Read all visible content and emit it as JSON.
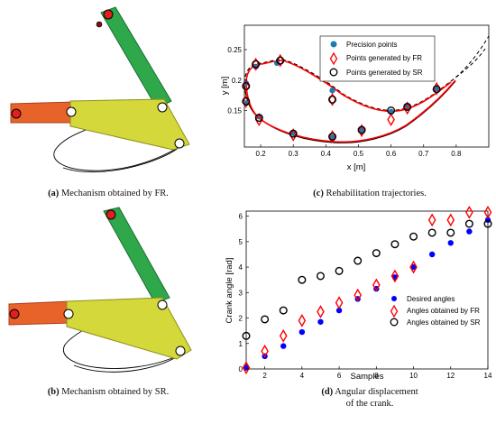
{
  "captions": {
    "a_tag": "(a)",
    "a_text": "Mechanism obtained by FR.",
    "b_tag": "(b)",
    "b_text": "Mechanism obtained by SR.",
    "c_tag": "(c)",
    "c_text": "Rehabilitation trajectories.",
    "d_tag": "(d)",
    "d_text_1": "Angular displacement",
    "d_text_2": "of the crank."
  },
  "chart_data": [
    {
      "type": "scatter",
      "id": "c",
      "xlabel": "x [m]",
      "ylabel": "y [m]",
      "xlim": [
        0.15,
        0.9
      ],
      "ylim": [
        0.09,
        0.29
      ],
      "xticks": [
        "0.2",
        "0.3",
        "0.4",
        "0.5",
        "0.6",
        "0.7",
        "0.8"
      ],
      "yticks": [
        "0.15",
        "0.2",
        "0.25"
      ],
      "legend": {
        "position": "top-center",
        "entries": [
          "Precision points",
          "Points generated by FR",
          "Points generated by SR"
        ]
      },
      "series": [
        {
          "name": "Precision points",
          "color": "#1f77b4",
          "x": [
            0.155,
            0.185,
            0.25,
            0.42,
            0.155,
            0.195,
            0.3,
            0.42,
            0.51,
            0.6,
            0.65,
            0.74
          ],
          "y": [
            0.195,
            0.222,
            0.228,
            0.183,
            0.162,
            0.14,
            0.113,
            0.106,
            0.118,
            0.148,
            0.158,
            0.185
          ]
        },
        {
          "name": "Points generated by FR",
          "color": "#ff0000",
          "x": [
            0.155,
            0.185,
            0.26,
            0.42,
            0.155,
            0.195,
            0.3,
            0.42,
            0.51,
            0.6,
            0.65,
            0.74
          ],
          "y": [
            0.19,
            0.226,
            0.232,
            0.168,
            0.165,
            0.135,
            0.11,
            0.107,
            0.117,
            0.135,
            0.154,
            0.186
          ]
        },
        {
          "name": "Points generated by SR",
          "color": "#000000",
          "x": [
            0.155,
            0.185,
            0.26,
            0.42,
            0.155,
            0.195,
            0.3,
            0.42,
            0.51,
            0.6,
            0.65,
            0.74
          ],
          "y": [
            0.19,
            0.226,
            0.232,
            0.168,
            0.165,
            0.138,
            0.112,
            0.107,
            0.118,
            0.15,
            0.156,
            0.185
          ]
        }
      ]
    },
    {
      "type": "scatter",
      "id": "d",
      "xlabel": "Samples",
      "ylabel": "Crank angle [rad]",
      "xlim": [
        1,
        14
      ],
      "ylim": [
        0,
        6.2
      ],
      "xticks": [
        "2",
        "4",
        "6",
        "8",
        "10",
        "12",
        "14"
      ],
      "yticks": [
        "0",
        "1",
        "2",
        "3",
        "4",
        "5",
        "6"
      ],
      "legend": {
        "position": "bottom-right",
        "entries": [
          "Desired angles",
          "Angles obtained by FR",
          "Angles obtained by SR"
        ]
      },
      "x": [
        1,
        2,
        3,
        4,
        5,
        6,
        7,
        8,
        9,
        10,
        11,
        12,
        13,
        14
      ],
      "series": [
        {
          "name": "Desired angles",
          "color": "#0000ff",
          "values": [
            0.05,
            0.5,
            0.9,
            1.45,
            1.85,
            2.3,
            2.75,
            3.15,
            3.6,
            4.0,
            4.5,
            4.95,
            5.4,
            5.85
          ]
        },
        {
          "name": "Angles obtained by FR",
          "color": "#ff0000",
          "values": [
            0.05,
            0.7,
            1.3,
            1.9,
            2.25,
            2.6,
            2.9,
            3.3,
            3.65,
            4.0,
            5.85,
            5.85,
            6.15,
            6.15
          ]
        },
        {
          "name": "Angles obtained by SR",
          "color": "#000000",
          "values": [
            1.3,
            1.95,
            2.3,
            3.5,
            3.65,
            3.85,
            4.25,
            4.55,
            4.9,
            5.2,
            5.35,
            5.35,
            5.7,
            5.7
          ]
        }
      ]
    }
  ]
}
